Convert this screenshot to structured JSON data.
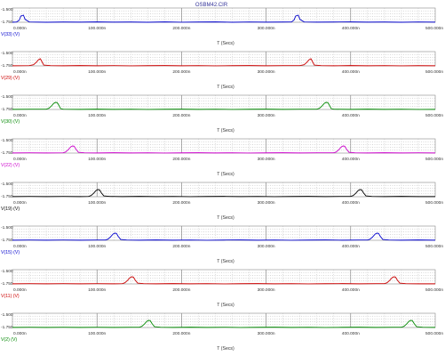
{
  "title": "OSBM42.CIR",
  "chart_data": [
    {
      "type": "line",
      "series": [
        {
          "name": "V(33) (V)",
          "color": "#0000cc",
          "x": [
            0,
            5,
            8,
            10,
            13,
            15,
            20,
            40,
            60,
            80,
            100,
            120,
            140,
            160,
            180,
            200,
            220,
            240,
            260,
            280,
            300,
            320,
            330,
            333,
            335,
            338,
            340,
            345,
            360,
            380,
            400,
            420,
            440,
            460,
            480,
            500
          ],
          "y": [
            -1.75,
            -1.745,
            -1.715,
            -1.64,
            -1.625,
            -1.7,
            -1.745,
            -1.75,
            -1.746,
            -1.748,
            -1.744,
            -1.748,
            -1.746,
            -1.75,
            -1.744,
            -1.749,
            -1.746,
            -1.744,
            -1.75,
            -1.745,
            -1.748,
            -1.746,
            -1.745,
            -1.71,
            -1.64,
            -1.625,
            -1.7,
            -1.745,
            -1.748,
            -1.746,
            -1.744,
            -1.748,
            -1.746,
            -1.75,
            -1.745,
            -1.748
          ]
        }
      ],
      "xlabel": "T (Secs)",
      "xlim": [
        0,
        500
      ],
      "ylim": [
        -1.75,
        -1.5
      ],
      "yticks": [
        "-1.500",
        "-1.750"
      ],
      "xticks": [
        "0.000n",
        "100.000n",
        "200.000n",
        "300.000n",
        "400.000n",
        "500.000n"
      ]
    },
    {
      "type": "line",
      "series": [
        {
          "name": "V(29) (V)",
          "color": "#cc0000",
          "x": [
            0,
            20,
            25,
            28,
            31,
            33,
            35,
            37,
            45,
            60,
            80,
            100,
            120,
            140,
            160,
            180,
            200,
            220,
            240,
            260,
            280,
            300,
            320,
            340,
            345,
            348,
            351,
            353,
            355,
            357,
            365,
            380,
            400,
            420,
            440,
            460,
            480,
            500
          ],
          "y": [
            -1.748,
            -1.745,
            -1.73,
            -1.69,
            -1.64,
            -1.625,
            -1.68,
            -1.735,
            -1.745,
            -1.748,
            -1.744,
            -1.748,
            -1.745,
            -1.749,
            -1.746,
            -1.744,
            -1.748,
            -1.745,
            -1.749,
            -1.746,
            -1.744,
            -1.748,
            -1.745,
            -1.745,
            -1.73,
            -1.69,
            -1.64,
            -1.625,
            -1.68,
            -1.735,
            -1.745,
            -1.748,
            -1.744,
            -1.748,
            -1.745,
            -1.749,
            -1.746,
            -1.748
          ]
        }
      ],
      "xlabel": "T (Secs)",
      "xlim": [
        0,
        500
      ],
      "ylim": [
        -1.75,
        -1.5
      ],
      "yticks": [
        "-1.500",
        "-1.750"
      ],
      "xticks": [
        "0.000n",
        "100.000n",
        "200.000n",
        "300.000n",
        "400.000n",
        "500.000n"
      ]
    },
    {
      "type": "line",
      "series": [
        {
          "name": "V(30) (V)",
          "color": "#008800",
          "x": [
            0,
            20,
            40,
            43,
            46,
            49,
            51,
            53,
            55,
            57,
            60,
            80,
            100,
            120,
            140,
            160,
            180,
            200,
            220,
            240,
            260,
            280,
            300,
            320,
            340,
            360,
            363,
            366,
            369,
            371,
            373,
            375,
            377,
            380,
            400,
            420,
            440,
            460,
            480,
            500
          ],
          "y": [
            -1.748,
            -1.745,
            -1.745,
            -1.73,
            -1.69,
            -1.64,
            -1.625,
            -1.63,
            -1.68,
            -1.735,
            -1.745,
            -1.748,
            -1.744,
            -1.748,
            -1.745,
            -1.749,
            -1.746,
            -1.744,
            -1.748,
            -1.745,
            -1.749,
            -1.746,
            -1.744,
            -1.748,
            -1.745,
            -1.745,
            -1.73,
            -1.69,
            -1.64,
            -1.625,
            -1.63,
            -1.68,
            -1.735,
            -1.745,
            -1.748,
            -1.744,
            -1.748,
            -1.745,
            -1.749,
            -1.748
          ]
        }
      ],
      "xlabel": "T (Secs)",
      "xlim": [
        0,
        500
      ],
      "ylim": [
        -1.75,
        -1.5
      ],
      "yticks": [
        "-1.500",
        "-1.750"
      ],
      "xticks": [
        "0.000n",
        "100.000n",
        "200.000n",
        "300.000n",
        "400.000n",
        "500.000n"
      ]
    },
    {
      "type": "line",
      "series": [
        {
          "name": "V(22) (V)",
          "color": "#cc00cc",
          "x": [
            0,
            20,
            40,
            60,
            63,
            66,
            69,
            71,
            73,
            75,
            78,
            85,
            100,
            120,
            140,
            160,
            180,
            200,
            220,
            240,
            260,
            280,
            300,
            320,
            340,
            360,
            380,
            383,
            386,
            389,
            391,
            393,
            395,
            398,
            405,
            420,
            440,
            460,
            480,
            500
          ],
          "y": [
            -1.748,
            -1.745,
            -1.748,
            -1.745,
            -1.73,
            -1.69,
            -1.64,
            -1.625,
            -1.63,
            -1.68,
            -1.735,
            -1.745,
            -1.748,
            -1.744,
            -1.748,
            -1.745,
            -1.749,
            -1.746,
            -1.744,
            -1.748,
            -1.745,
            -1.749,
            -1.746,
            -1.744,
            -1.748,
            -1.745,
            -1.745,
            -1.73,
            -1.69,
            -1.64,
            -1.625,
            -1.63,
            -1.68,
            -1.735,
            -1.745,
            -1.748,
            -1.744,
            -1.748,
            -1.745,
            -1.748
          ]
        }
      ],
      "xlabel": "T (Secs)",
      "xlim": [
        0,
        500
      ],
      "ylim": [
        -1.75,
        -1.5
      ],
      "yticks": [
        "-1.500",
        "-1.750"
      ],
      "xticks": [
        "0.000n",
        "100.000n",
        "200.000n",
        "300.000n",
        "400.000n",
        "500.000n"
      ]
    },
    {
      "type": "line",
      "series": [
        {
          "name": "V(19) (V)",
          "color": "#000000",
          "x": [
            0,
            20,
            40,
            60,
            80,
            90,
            93,
            96,
            99,
            101,
            103,
            105,
            108,
            115,
            130,
            150,
            170,
            190,
            210,
            230,
            250,
            270,
            290,
            310,
            330,
            350,
            370,
            390,
            400,
            403,
            406,
            409,
            411,
            413,
            415,
            418,
            425,
            440,
            460,
            480,
            500
          ],
          "y": [
            -1.748,
            -1.745,
            -1.748,
            -1.745,
            -1.748,
            -1.745,
            -1.73,
            -1.69,
            -1.64,
            -1.625,
            -1.63,
            -1.68,
            -1.735,
            -1.745,
            -1.748,
            -1.744,
            -1.748,
            -1.745,
            -1.749,
            -1.746,
            -1.744,
            -1.748,
            -1.745,
            -1.749,
            -1.746,
            -1.744,
            -1.748,
            -1.745,
            -1.745,
            -1.73,
            -1.69,
            -1.64,
            -1.625,
            -1.63,
            -1.68,
            -1.735,
            -1.745,
            -1.748,
            -1.744,
            -1.748,
            -1.748
          ]
        }
      ],
      "xlabel": "T (Secs)",
      "xlim": [
        0,
        500
      ],
      "ylim": [
        -1.75,
        -1.5
      ],
      "yticks": [
        "-1.500",
        "-1.750"
      ],
      "xticks": [
        "0.000n",
        "100.000n",
        "200.000n",
        "300.000n",
        "400.000n",
        "500.000n"
      ]
    },
    {
      "type": "line",
      "series": [
        {
          "name": "V(15) (V)",
          "color": "#0000cc",
          "x": [
            0,
            20,
            40,
            60,
            80,
            100,
            110,
            113,
            116,
            119,
            121,
            123,
            125,
            128,
            135,
            150,
            170,
            190,
            210,
            230,
            250,
            270,
            290,
            310,
            330,
            350,
            370,
            390,
            410,
            420,
            423,
            426,
            429,
            431,
            433,
            435,
            438,
            445,
            460,
            480,
            500
          ],
          "y": [
            -1.748,
            -1.745,
            -1.748,
            -1.745,
            -1.748,
            -1.745,
            -1.745,
            -1.73,
            -1.69,
            -1.64,
            -1.625,
            -1.63,
            -1.68,
            -1.735,
            -1.745,
            -1.748,
            -1.744,
            -1.748,
            -1.745,
            -1.749,
            -1.746,
            -1.744,
            -1.748,
            -1.745,
            -1.749,
            -1.746,
            -1.744,
            -1.748,
            -1.745,
            -1.745,
            -1.73,
            -1.69,
            -1.64,
            -1.625,
            -1.63,
            -1.68,
            -1.735,
            -1.745,
            -1.748,
            -1.744,
            -1.748
          ]
        }
      ],
      "xlabel": "T (Secs)",
      "xlim": [
        0,
        500
      ],
      "ylim": [
        -1.75,
        -1.5
      ],
      "yticks": [
        "-1.500",
        "-1.750"
      ],
      "xticks": [
        "0.000n",
        "100.000n",
        "200.000n",
        "300.000n",
        "400.000n",
        "500.000n"
      ]
    },
    {
      "type": "line",
      "series": [
        {
          "name": "V(11) (V)",
          "color": "#cc0000",
          "x": [
            0,
            20,
            40,
            60,
            80,
            100,
            120,
            130,
            133,
            136,
            139,
            141,
            143,
            145,
            148,
            155,
            170,
            190,
            210,
            230,
            250,
            270,
            290,
            310,
            330,
            350,
            370,
            390,
            410,
            430,
            440,
            443,
            446,
            449,
            451,
            453,
            455,
            458,
            465,
            480,
            500
          ],
          "y": [
            -1.748,
            -1.745,
            -1.748,
            -1.745,
            -1.748,
            -1.745,
            -1.748,
            -1.745,
            -1.73,
            -1.69,
            -1.64,
            -1.625,
            -1.63,
            -1.68,
            -1.735,
            -1.745,
            -1.748,
            -1.744,
            -1.748,
            -1.745,
            -1.749,
            -1.746,
            -1.744,
            -1.748,
            -1.745,
            -1.749,
            -1.746,
            -1.744,
            -1.748,
            -1.745,
            -1.745,
            -1.73,
            -1.69,
            -1.64,
            -1.625,
            -1.63,
            -1.68,
            -1.735,
            -1.745,
            -1.748,
            -1.748
          ]
        }
      ],
      "xlabel": "T (Secs)",
      "xlim": [
        0,
        500
      ],
      "ylim": [
        -1.75,
        -1.5
      ],
      "yticks": [
        "-1.500",
        "-1.750"
      ],
      "xticks": [
        "0.000n",
        "100.000n",
        "200.000n",
        "300.000n",
        "400.000n",
        "500.000n"
      ]
    },
    {
      "type": "line",
      "series": [
        {
          "name": "V(2) (V)",
          "color": "#008800",
          "x": [
            0,
            20,
            40,
            60,
            80,
            100,
            120,
            140,
            150,
            153,
            156,
            159,
            161,
            163,
            165,
            168,
            175,
            190,
            210,
            230,
            250,
            270,
            290,
            310,
            330,
            350,
            370,
            390,
            410,
            430,
            450,
            460,
            463,
            466,
            469,
            471,
            473,
            475,
            478,
            485,
            500
          ],
          "y": [
            -1.748,
            -1.745,
            -1.748,
            -1.745,
            -1.748,
            -1.745,
            -1.748,
            -1.745,
            -1.745,
            -1.73,
            -1.69,
            -1.64,
            -1.625,
            -1.63,
            -1.68,
            -1.735,
            -1.745,
            -1.748,
            -1.744,
            -1.748,
            -1.745,
            -1.749,
            -1.746,
            -1.744,
            -1.748,
            -1.745,
            -1.749,
            -1.746,
            -1.744,
            -1.748,
            -1.745,
            -1.745,
            -1.73,
            -1.69,
            -1.64,
            -1.625,
            -1.63,
            -1.68,
            -1.735,
            -1.745,
            -1.748
          ]
        }
      ],
      "xlabel": "T (Secs)",
      "xlim": [
        0,
        500
      ],
      "ylim": [
        -1.75,
        -1.5
      ],
      "yticks": [
        "-1.500",
        "-1.750"
      ],
      "xticks": [
        "0.000n",
        "100.000n",
        "200.000n",
        "300.000n",
        "400.000n",
        "500.000n"
      ]
    }
  ]
}
